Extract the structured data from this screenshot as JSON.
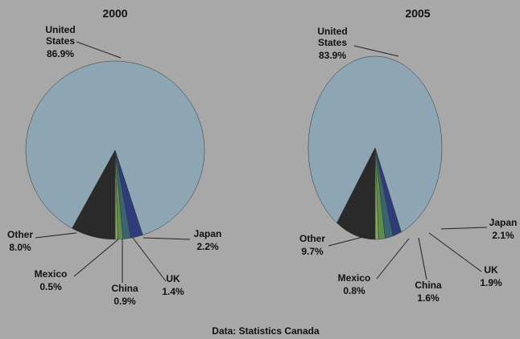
{
  "chart_data": [
    {
      "type": "pie",
      "title": "2000",
      "categories": [
        "United States",
        "Japan",
        "UK",
        "China",
        "Mexico",
        "Other"
      ],
      "values": [
        86.9,
        2.2,
        1.4,
        0.9,
        0.5,
        8.0
      ],
      "value_labels": [
        "86.9%",
        "2.2%",
        "1.4%",
        "0.9%",
        "0.5%",
        "8.0%"
      ],
      "colors": [
        "#8ea6b4",
        "#2e3c7c",
        "#3b6472",
        "#5f8c4c",
        "#86a85c",
        "#2a2a2a"
      ]
    },
    {
      "type": "pie",
      "title": "2005",
      "categories": [
        "United States",
        "Japan",
        "UK",
        "China",
        "Mexico",
        "Other"
      ],
      "values": [
        83.9,
        2.1,
        1.9,
        1.6,
        0.8,
        9.7
      ],
      "value_labels": [
        "83.9%",
        "2.1%",
        "1.9%",
        "1.6%",
        "0.8%",
        "9.7%"
      ],
      "colors": [
        "#8ea6b4",
        "#2e3c7c",
        "#3b6472",
        "#5f8c4c",
        "#86a85c",
        "#2a2a2a"
      ]
    }
  ],
  "source": "Data: Statistics Canada"
}
